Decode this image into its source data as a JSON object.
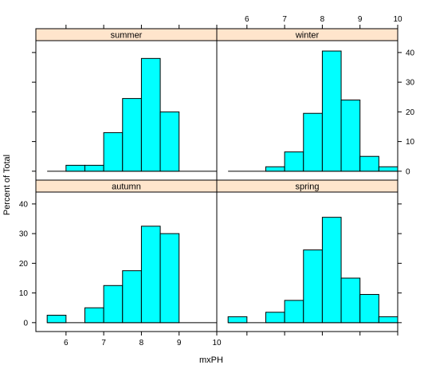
{
  "chart_data": {
    "type": "bar",
    "chart_kind": "trellis-histogram",
    "layout": "2x2",
    "xlabel": "mxPH",
    "ylabel": "Percent of Total",
    "xlim": [
      5.2,
      10.0
    ],
    "ylim": [
      -3,
      44
    ],
    "x_ticks": [
      6,
      7,
      8,
      9,
      10
    ],
    "y_ticks": [
      0,
      10,
      20,
      30,
      40
    ],
    "bin_width": 0.5,
    "colors": {
      "bar_fill": "#00ffff",
      "bar_stroke": "#000000",
      "strip_fill": "#ffe5cc",
      "frame": "#000000"
    },
    "panels": [
      {
        "name": "summer",
        "position": "top-left",
        "bins": [
          5.5,
          6.0,
          6.5,
          7.0,
          7.5,
          8.0,
          8.5,
          9.0,
          9.5
        ],
        "values": [
          0,
          2,
          2,
          13,
          24.5,
          38,
          20,
          0,
          0
        ]
      },
      {
        "name": "winter",
        "position": "top-right",
        "bins": [
          5.5,
          6.0,
          6.5,
          7.0,
          7.5,
          8.0,
          8.5,
          9.0,
          9.5
        ],
        "values": [
          0,
          0,
          1.5,
          6.5,
          19.5,
          40.5,
          24,
          5,
          1.5
        ]
      },
      {
        "name": "autumn",
        "position": "bottom-left",
        "bins": [
          5.5,
          6.0,
          6.5,
          7.0,
          7.5,
          8.0,
          8.5,
          9.0,
          9.5
        ],
        "values": [
          2.5,
          0,
          5,
          12.5,
          17.5,
          32.5,
          30,
          0,
          0
        ]
      },
      {
        "name": "spring",
        "position": "bottom-right",
        "bins": [
          5.5,
          6.0,
          6.5,
          7.0,
          7.5,
          8.0,
          8.5,
          9.0,
          9.5
        ],
        "values": [
          2,
          0,
          3.5,
          7.5,
          24.5,
          35.5,
          15,
          9.5,
          2
        ]
      }
    ]
  }
}
